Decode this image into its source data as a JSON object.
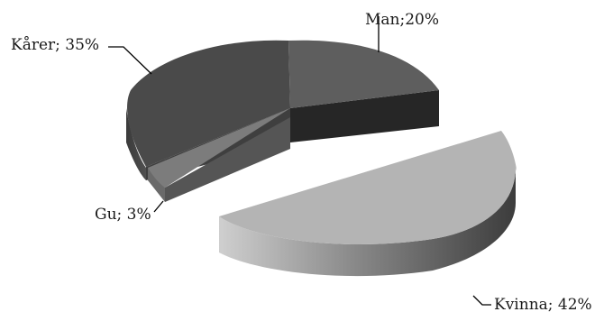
{
  "chart_data": {
    "type": "pie",
    "style": "3d-exploded",
    "title": "",
    "slices": [
      {
        "name": "Man",
        "value": 20,
        "label": "Man;20%",
        "color": "#5e5e5e"
      },
      {
        "name": "Kvinna",
        "value": 42,
        "label": "Kvinna; 42%",
        "color": "#b4b4b4"
      },
      {
        "name": "Gu",
        "value": 3,
        "label": "Gu; 3%",
        "color": "#7c7c7c"
      },
      {
        "name": "Kårer",
        "value": 35,
        "label": "Kårer; 35%",
        "color": "#4a4a4a"
      }
    ],
    "legend": "none",
    "labels_position": "outside with leader lines"
  }
}
